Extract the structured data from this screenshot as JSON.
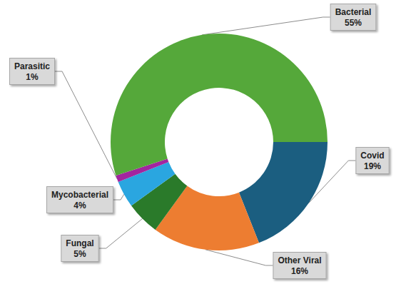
{
  "chart_data": {
    "type": "pie",
    "categories": [
      "Covid",
      "Other Viral",
      "Fungal",
      "Mycobacterial",
      "Parasitic",
      "Bacterial"
    ],
    "values": [
      19,
      16,
      5,
      4,
      1,
      55
    ],
    "value_labels": [
      "19%",
      "16%",
      "5%",
      "4%",
      "1%",
      "55%"
    ],
    "colors": [
      "#1b5e80",
      "#ed7d31",
      "#2a7a2a",
      "#2aa6e0",
      "#a3259f",
      "#55a83a"
    ],
    "data_labels": true
  }
}
